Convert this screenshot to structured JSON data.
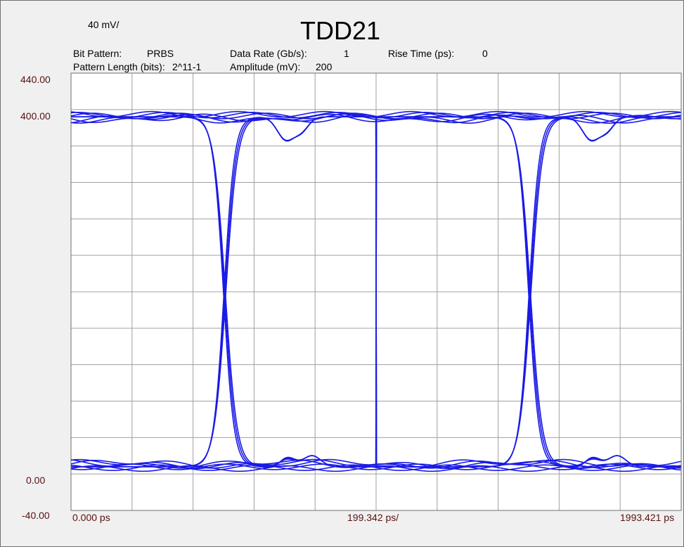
{
  "header": {
    "scale_label": "40 mV/",
    "title": "TDD21",
    "info": {
      "bit_pattern_label": "Bit Pattern:",
      "bit_pattern_value": "PRBS",
      "data_rate_label": "Data Rate (Gb/s):",
      "data_rate_value": "1",
      "rise_time_label": "Rise Time (ps):",
      "rise_time_value": "0",
      "pattern_length_label": "Pattern Length (bits):",
      "pattern_length_value": "2^11-1",
      "amplitude_label": "Amplitude (mV):",
      "amplitude_value": "200"
    }
  },
  "axes": {
    "y_top_label": "440.00",
    "y_ref_high_label": "400.00",
    "y_ref_low_label": "0.00",
    "y_bottom_label": "-40.00",
    "x_start_label": "0.000 ps",
    "x_div_label": "199.342 ps/",
    "x_end_label": "1993.421 ps"
  },
  "chart_data": {
    "type": "line",
    "title": "TDD21",
    "ylabel": "",
    "xlabel": "",
    "xlim": [
      0,
      1993.421
    ],
    "ylim": [
      -40,
      440
    ],
    "x_divisions": 10,
    "y_divisions": 12,
    "grid": true,
    "line_color": "#1a1ae6",
    "grid_color": "#a0a0a0",
    "levels_mv": {
      "high": 392,
      "low": 8
    },
    "crossings_ps": [
      498,
      1495
    ],
    "crossing_level_mv": 200,
    "overshoot_peaks_ps": [
      690,
      1690
    ],
    "undershoot_dips_ps": [
      758,
      1755
    ],
    "ripple_amplitude_mv": 12
  }
}
